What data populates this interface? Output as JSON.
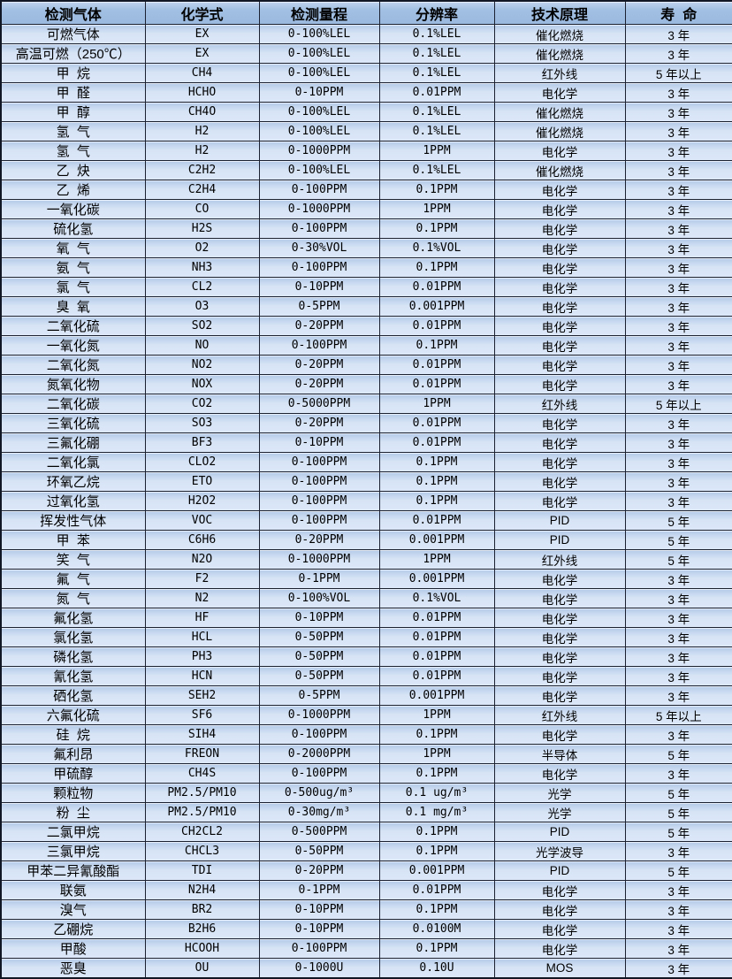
{
  "colors": {
    "header_bg": "#a2c0e3",
    "row_bg_top": "#b5cbe9",
    "row_bg_bottom": "#dce8f8",
    "grid_line": "#1b2130",
    "text": "#000000"
  },
  "table": {
    "columns": [
      {
        "key": "gas",
        "label": "检测气体"
      },
      {
        "key": "formula",
        "label": "化学式"
      },
      {
        "key": "range",
        "label": "检测量程"
      },
      {
        "key": "resolution",
        "label": "分辨率"
      },
      {
        "key": "principle",
        "label": "技术原理"
      },
      {
        "key": "lifespan",
        "label": "寿  命"
      }
    ],
    "rows": [
      [
        "可燃气体",
        "EX",
        "0-100%LEL",
        "0.1%LEL",
        "催化燃烧",
        "3 年"
      ],
      [
        "高温可燃（250℃）",
        "EX",
        "0-100%LEL",
        "0.1%LEL",
        "催化燃烧",
        "3 年"
      ],
      [
        "甲  烷",
        "CH4",
        "0-100%LEL",
        "0.1%LEL",
        "红外线",
        "5 年以上"
      ],
      [
        "甲  醛",
        "HCHO",
        "0-10PPM",
        "0.01PPM",
        "电化学",
        "3 年"
      ],
      [
        "甲  醇",
        "CH4O",
        "0-100%LEL",
        "0.1%LEL",
        "催化燃烧",
        "3 年"
      ],
      [
        "氢  气",
        "H2",
        "0-100%LEL",
        "0.1%LEL",
        "催化燃烧",
        "3 年"
      ],
      [
        "氢  气",
        "H2",
        "0-1000PPM",
        "1PPM",
        "电化学",
        "3 年"
      ],
      [
        "乙  炔",
        "C2H2",
        "0-100%LEL",
        "0.1%LEL",
        "催化燃烧",
        "3 年"
      ],
      [
        "乙  烯",
        "C2H4",
        "0-100PPM",
        "0.1PPM",
        "电化学",
        "3 年"
      ],
      [
        "一氧化碳",
        "CO",
        "0-1000PPM",
        "1PPM",
        "电化学",
        "3 年"
      ],
      [
        "硫化氢",
        "H2S",
        "0-100PPM",
        "0.1PPM",
        "电化学",
        "3 年"
      ],
      [
        "氧  气",
        "O2",
        "0-30%VOL",
        "0.1%VOL",
        "电化学",
        "3 年"
      ],
      [
        "氨  气",
        "NH3",
        "0-100PPM",
        "0.1PPM",
        "电化学",
        "3 年"
      ],
      [
        "氯  气",
        "CL2",
        "0-10PPM",
        "0.01PPM",
        "电化学",
        "3 年"
      ],
      [
        "臭  氧",
        "O3",
        "0-5PPM",
        "0.001PPM",
        "电化学",
        "3 年"
      ],
      [
        "二氧化硫",
        "SO2",
        "0-20PPM",
        "0.01PPM",
        "电化学",
        "3 年"
      ],
      [
        "一氧化氮",
        "NO",
        "0-100PPM",
        "0.1PPM",
        "电化学",
        "3 年"
      ],
      [
        "二氧化氮",
        "NO2",
        "0-20PPM",
        "0.01PPM",
        "电化学",
        "3 年"
      ],
      [
        "氮氧化物",
        "NOX",
        "0-20PPM",
        "0.01PPM",
        "电化学",
        "3 年"
      ],
      [
        "二氧化碳",
        "CO2",
        "0-5000PPM",
        "1PPM",
        "红外线",
        "5 年以上"
      ],
      [
        "三氧化硫",
        "SO3",
        "0-20PPM",
        "0.01PPM",
        "电化学",
        "3 年"
      ],
      [
        "三氟化硼",
        "BF3",
        "0-10PPM",
        "0.01PPM",
        "电化学",
        "3 年"
      ],
      [
        "二氧化氯",
        "CLO2",
        "0-100PPM",
        "0.1PPM",
        "电化学",
        "3 年"
      ],
      [
        "环氧乙烷",
        "ETO",
        "0-100PPM",
        "0.1PPM",
        "电化学",
        "3 年"
      ],
      [
        "过氧化氢",
        "H2O2",
        "0-100PPM",
        "0.1PPM",
        "电化学",
        "3 年"
      ],
      [
        "挥发性气体",
        "VOC",
        "0-100PPM",
        "0.01PPM",
        "PID",
        "5 年"
      ],
      [
        "甲  苯",
        "C6H6",
        "0-20PPM",
        "0.001PPM",
        "PID",
        "5 年"
      ],
      [
        "笑  气",
        "N2O",
        "0-1000PPM",
        "1PPM",
        "红外线",
        "5 年"
      ],
      [
        "氟  气",
        "F2",
        "0-1PPM",
        "0.001PPM",
        "电化学",
        "3 年"
      ],
      [
        "氮  气",
        "N2",
        "0-100%VOL",
        "0.1%VOL",
        "电化学",
        "3 年"
      ],
      [
        "氟化氢",
        "HF",
        "0-10PPM",
        "0.01PPM",
        "电化学",
        "3 年"
      ],
      [
        "氯化氢",
        "HCL",
        "0-50PPM",
        "0.01PPM",
        "电化学",
        "3 年"
      ],
      [
        "磷化氢",
        "PH3",
        "0-50PPM",
        "0.01PPM",
        "电化学",
        "3 年"
      ],
      [
        "氰化氢",
        "HCN",
        "0-50PPM",
        "0.01PPM",
        "电化学",
        "3 年"
      ],
      [
        "硒化氢",
        "SEH2",
        "0-5PPM",
        "0.001PPM",
        "电化学",
        "3 年"
      ],
      [
        "六氟化硫",
        "SF6",
        "0-1000PPM",
        "1PPM",
        "红外线",
        "5 年以上"
      ],
      [
        "硅  烷",
        "SIH4",
        "0-100PPM",
        "0.1PPM",
        "电化学",
        "3 年"
      ],
      [
        "氟利昂",
        "FREON",
        "0-2000PPM",
        "1PPM",
        "半导体",
        "5 年"
      ],
      [
        "甲硫醇",
        "CH4S",
        "0-100PPM",
        "0.1PPM",
        "电化学",
        "3 年"
      ],
      [
        "颗粒物",
        "PM2.5/PM10",
        "0-500ug/m³",
        "0.1 ug/m³",
        "光学",
        "5 年"
      ],
      [
        "粉  尘",
        "PM2.5/PM10",
        "0-30mg/m³",
        "0.1 mg/m³",
        "光学",
        "5 年"
      ],
      [
        "二氯甲烷",
        "CH2CL2",
        "0-500PPM",
        "0.1PPM",
        "PID",
        "5 年"
      ],
      [
        "三氯甲烷",
        "CHCL3",
        "0-50PPM",
        "0.1PPM",
        "光学波导",
        "3 年"
      ],
      [
        "甲苯二异氰酸酯",
        "TDI",
        "0-20PPM",
        "0.001PPM",
        "PID",
        "5 年"
      ],
      [
        "联氨",
        "N2H4",
        "0-1PPM",
        "0.01PPM",
        "电化学",
        "3 年"
      ],
      [
        "溴气",
        "BR2",
        "0-10PPM",
        "0.1PPM",
        "电化学",
        "3 年"
      ],
      [
        "乙硼烷",
        "B2H6",
        "0-10PPM",
        "0.0100M",
        "电化学",
        "3 年"
      ],
      [
        "甲酸",
        "HCOOH",
        "0-100PPM",
        "0.1PPM",
        "电化学",
        "3 年"
      ],
      [
        "恶臭",
        "OU",
        "0-1000U",
        "0.10U",
        "MOS",
        "3 年"
      ]
    ]
  }
}
